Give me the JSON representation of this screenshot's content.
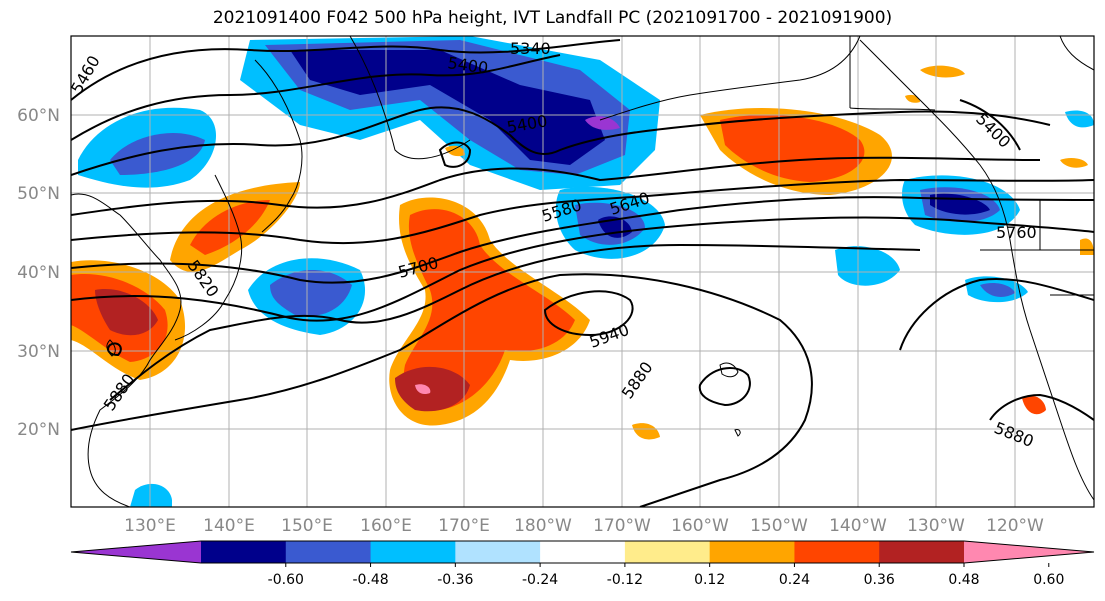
{
  "title": "2021091400 F042 500 hPa height, IVT Landfall PC (2021091700 - 2021091900)",
  "lat_labels": [
    "60°N",
    "50°N",
    "40°N",
    "30°N",
    "20°N"
  ],
  "lon_labels": [
    "130°E",
    "140°E",
    "150°E",
    "160°E",
    "170°E",
    "180°W",
    "170°W",
    "160°W",
    "150°W",
    "140°W",
    "130°W",
    "120°W"
  ],
  "contour_labels": [
    "5460",
    "5340",
    "5400",
    "5400",
    "5400",
    "5580",
    "5640",
    "5700",
    "5760",
    "5820",
    "5880",
    "5880",
    "5880",
    "5940",
    "5400",
    "5760"
  ],
  "colorbar": {
    "colors": [
      "#9a35d2",
      "#00008b",
      "#3a5ad0",
      "#00bfff",
      "#b0e2ff",
      "#ffffff",
      "#ffec8b",
      "#ffa500",
      "#ff4500",
      "#b22222",
      "#ff88b0"
    ],
    "tick_labels": [
      "-0.60",
      "-0.48",
      "-0.36",
      "-0.24",
      "-0.12",
      "0.12",
      "0.24",
      "0.36",
      "0.48",
      "0.60"
    ]
  },
  "colors": {
    "map_border": "#000000",
    "gridline": "#b0b0b0",
    "coast": "#000000"
  }
}
